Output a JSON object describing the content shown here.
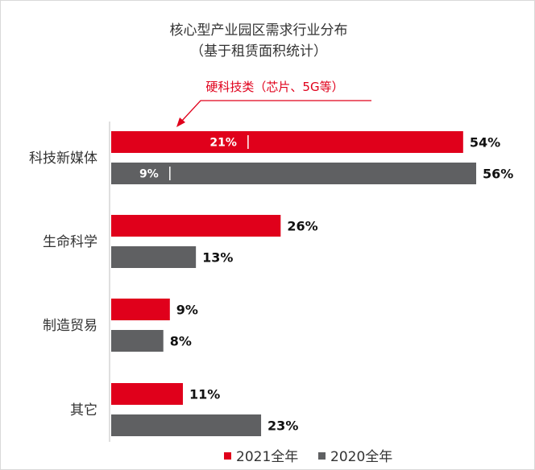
{
  "chart_data": {
    "type": "bar",
    "orientation": "horizontal",
    "title": "核心型产业园区需求行业分布",
    "subtitle": "（基于租赁面积统计）",
    "categories": [
      "科技新媒体",
      "生命科学",
      "制造贸易",
      "其它"
    ],
    "series": [
      {
        "name": "2021全年",
        "color": "#e0001b",
        "values": [
          54,
          26,
          9,
          11
        ],
        "labels": [
          "54%",
          "26%",
          "9%",
          "11%"
        ]
      },
      {
        "name": "2020全年",
        "color": "#5f6062",
        "values": [
          56,
          13,
          8,
          23
        ],
        "labels": [
          "56%",
          "13%",
          "8%",
          "23%"
        ]
      }
    ],
    "sub_segments": {
      "category": "科技新媒体",
      "values": [
        21,
        9
      ],
      "labels": [
        "21%",
        "9%"
      ]
    },
    "annotation": "硬科技类（芯片、5G等）",
    "legend_position": "bottom",
    "grid": false,
    "xlim": [
      0,
      56
    ]
  }
}
